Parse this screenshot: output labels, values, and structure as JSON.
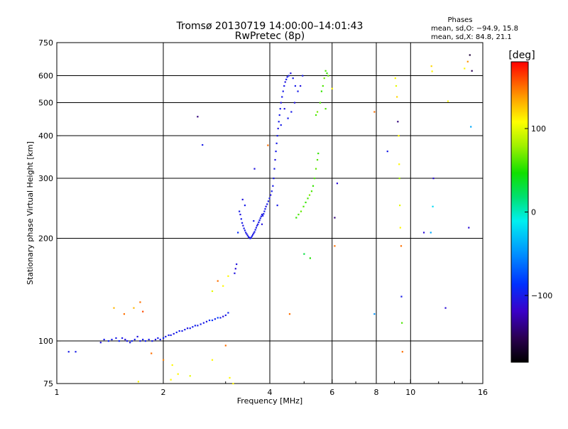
{
  "chart_data": {
    "type": "scatter",
    "title": "Tromsø 20130719 14:00:00–14:01:43",
    "subtitle": "RwPretec (8p)",
    "stats_header": "Phases",
    "stats_line1": "mean, sd,O: −94.9, 15.8",
    "stats_line2": "mean, sd,X:  84.8, 21.1",
    "xlabel": "Frequency [MHz]",
    "ylabel": "Stationary phase Virtual Height [km]",
    "x_scale": "log",
    "y_scale": "log",
    "xlim": [
      1,
      16
    ],
    "ylim": [
      75,
      750
    ],
    "x_ticks": [
      "1",
      "2",
      "4",
      "6",
      "8",
      "10",
      "16"
    ],
    "x_gridlines": [
      2,
      4,
      6,
      8,
      10
    ],
    "y_ticks": [
      "75",
      "100",
      "200",
      "300",
      "400",
      "500",
      "600",
      "750"
    ],
    "y_gridlines": [
      100,
      200,
      300,
      400,
      500,
      600
    ],
    "colorbar": {
      "label": "[deg]",
      "range": [
        -180,
        180
      ],
      "ticks": [
        "100",
        "0",
        "−100"
      ],
      "tick_values": [
        100,
        0,
        -100
      ]
    },
    "series": [
      {
        "points": [
          [
            1.08,
            93,
            -100
          ],
          [
            1.13,
            93,
            -100
          ],
          [
            1.33,
            99,
            -105
          ],
          [
            1.36,
            101,
            -100
          ],
          [
            1.4,
            100,
            -95
          ],
          [
            1.43,
            101,
            -100
          ],
          [
            1.47,
            102,
            -100
          ],
          [
            1.5,
            100,
            -95
          ],
          [
            1.53,
            102,
            -100
          ],
          [
            1.56,
            101,
            -110
          ],
          [
            1.58,
            100,
            -100
          ],
          [
            1.61,
            99,
            -100
          ],
          [
            1.63,
            100,
            -95
          ],
          [
            1.66,
            101,
            -100
          ],
          [
            1.69,
            103,
            -105
          ],
          [
            1.72,
            100,
            -100
          ],
          [
            1.75,
            101,
            -100
          ],
          [
            1.78,
            100,
            -95
          ],
          [
            1.82,
            101,
            -100
          ],
          [
            1.86,
            100,
            -100
          ],
          [
            1.9,
            101,
            -105
          ],
          [
            1.93,
            102,
            -100
          ],
          [
            1.96,
            101,
            -100
          ],
          [
            2.0,
            102,
            -95
          ],
          [
            2.03,
            103,
            -100
          ],
          [
            2.07,
            104,
            -100
          ],
          [
            2.1,
            104,
            -100
          ],
          [
            2.14,
            105,
            -105
          ],
          [
            2.18,
            106,
            -95
          ],
          [
            2.22,
            107,
            -100
          ],
          [
            2.26,
            107,
            -100
          ],
          [
            2.3,
            108,
            -100
          ],
          [
            2.34,
            109,
            -105
          ],
          [
            2.38,
            109,
            -100
          ],
          [
            2.42,
            110,
            -100
          ],
          [
            2.46,
            111,
            -95
          ],
          [
            2.5,
            111,
            -100
          ],
          [
            2.55,
            112,
            -100
          ],
          [
            2.6,
            113,
            -100
          ],
          [
            2.65,
            114,
            -105
          ],
          [
            2.7,
            115,
            -90
          ],
          [
            2.75,
            115,
            -85
          ],
          [
            2.8,
            116,
            -100
          ],
          [
            2.85,
            117,
            -80
          ],
          [
            2.9,
            117,
            -100
          ],
          [
            2.95,
            118,
            -110
          ],
          [
            3.0,
            119,
            -100
          ],
          [
            3.05,
            121,
            -95
          ],
          [
            3.18,
            158,
            -105
          ],
          [
            3.2,
            163,
            -110
          ],
          [
            3.22,
            168,
            -105
          ],
          [
            3.25,
            208,
            -90
          ],
          [
            3.28,
            240,
            -100
          ],
          [
            3.3,
            235,
            -105
          ],
          [
            3.32,
            228,
            -100
          ],
          [
            3.34,
            222,
            -100
          ],
          [
            3.36,
            218,
            -105
          ],
          [
            3.38,
            214,
            -100
          ],
          [
            3.4,
            211,
            -100
          ],
          [
            3.42,
            208,
            -100
          ],
          [
            3.44,
            206,
            -105
          ],
          [
            3.46,
            204,
            -100
          ],
          [
            3.48,
            202,
            -100
          ],
          [
            3.5,
            201,
            -105
          ],
          [
            3.52,
            200,
            -100
          ],
          [
            3.54,
            201,
            -100
          ],
          [
            3.56,
            203,
            -100
          ],
          [
            3.58,
            205,
            -100
          ],
          [
            3.6,
            207,
            -105
          ],
          [
            3.62,
            209,
            -100
          ],
          [
            3.64,
            212,
            -100
          ],
          [
            3.66,
            215,
            -100
          ],
          [
            3.68,
            218,
            -100
          ],
          [
            3.7,
            220,
            -105
          ],
          [
            3.72,
            223,
            -100
          ],
          [
            3.74,
            226,
            -100
          ],
          [
            3.76,
            229,
            -100
          ],
          [
            3.78,
            232,
            -100
          ],
          [
            3.8,
            235,
            -105
          ],
          [
            3.82,
            233,
            -100
          ],
          [
            3.84,
            236,
            -100
          ],
          [
            3.86,
            240,
            -100
          ],
          [
            3.88,
            244,
            -100
          ],
          [
            3.9,
            248,
            -105
          ],
          [
            3.93,
            252,
            -100
          ],
          [
            3.96,
            257,
            -100
          ],
          [
            3.99,
            262,
            -100
          ],
          [
            4.02,
            268,
            -105
          ],
          [
            4.05,
            275,
            -100
          ],
          [
            4.08,
            285,
            -100
          ],
          [
            4.1,
            300,
            -100
          ],
          [
            4.12,
            320,
            -100
          ],
          [
            4.14,
            340,
            -105
          ],
          [
            4.16,
            360,
            -100
          ],
          [
            4.18,
            380,
            -100
          ],
          [
            4.2,
            400,
            -100
          ],
          [
            4.22,
            420,
            -105
          ],
          [
            4.24,
            440,
            -100
          ],
          [
            4.26,
            460,
            -100
          ],
          [
            4.28,
            480,
            -100
          ],
          [
            4.3,
            500,
            -105
          ],
          [
            4.33,
            520,
            -100
          ],
          [
            4.36,
            540,
            -100
          ],
          [
            4.39,
            560,
            -100
          ],
          [
            4.42,
            575,
            -105
          ],
          [
            4.45,
            585,
            -100
          ],
          [
            4.48,
            595,
            -100
          ],
          [
            4.52,
            600,
            -100
          ],
          [
            4.58,
            610,
            -105
          ],
          [
            4.65,
            590,
            -100
          ],
          [
            4.72,
            560,
            -100
          ],
          [
            4.8,
            540,
            -100
          ],
          [
            4.88,
            560,
            -105
          ],
          [
            4.95,
            600,
            -100
          ],
          [
            3.35,
            260,
            -105
          ],
          [
            3.4,
            250,
            -100
          ],
          [
            3.6,
            225,
            -100
          ],
          [
            3.8,
            220,
            -105
          ],
          [
            4.2,
            250,
            -100
          ],
          [
            4.4,
            480,
            -105
          ],
          [
            4.5,
            450,
            -100
          ],
          [
            4.6,
            470,
            -100
          ],
          [
            4.3,
            430,
            -100
          ],
          [
            4.7,
            500,
            -105
          ],
          [
            3.62,
            320,
            -105
          ],
          [
            2.5,
            455,
            -140
          ],
          [
            2.58,
            376,
            -100
          ],
          [
            3.95,
            375,
            150
          ],
          [
            4.75,
            230,
            55
          ],
          [
            4.82,
            235,
            60
          ],
          [
            4.9,
            240,
            65
          ],
          [
            4.98,
            248,
            60
          ],
          [
            5.05,
            255,
            55
          ],
          [
            5.12,
            262,
            60
          ],
          [
            5.18,
            268,
            70
          ],
          [
            5.25,
            275,
            60
          ],
          [
            5.3,
            285,
            55
          ],
          [
            5.35,
            300,
            60
          ],
          [
            5.4,
            320,
            65
          ],
          [
            5.45,
            340,
            60
          ],
          [
            5.48,
            355,
            55
          ],
          [
            5.4,
            460,
            60
          ],
          [
            5.45,
            470,
            70
          ],
          [
            5.55,
            500,
            60
          ],
          [
            5.6,
            540,
            55
          ],
          [
            5.65,
            560,
            60
          ],
          [
            5.7,
            590,
            70
          ],
          [
            5.75,
            620,
            60
          ],
          [
            5.8,
            610,
            55
          ],
          [
            5.85,
            600,
            65
          ],
          [
            4.55,
            120,
            150
          ],
          [
            3.0,
            97,
            150
          ],
          [
            2.85,
            150,
            150
          ],
          [
            2.75,
            140,
            100
          ],
          [
            2.95,
            145,
            110
          ],
          [
            3.05,
            155,
            110
          ],
          [
            1.45,
            125,
            130
          ],
          [
            1.55,
            120,
            150
          ],
          [
            1.65,
            125,
            130
          ],
          [
            1.72,
            130,
            150
          ],
          [
            1.75,
            122,
            160
          ],
          [
            1.85,
            92,
            150
          ],
          [
            2.0,
            88,
            145
          ],
          [
            2.12,
            85,
            110
          ],
          [
            2.2,
            80,
            110
          ],
          [
            2.38,
            79,
            100
          ],
          [
            2.75,
            88,
            110
          ],
          [
            3.08,
            78,
            110
          ],
          [
            3.15,
            75,
            110
          ],
          [
            1.7,
            76,
            110
          ],
          [
            1.62,
            70,
            110
          ],
          [
            2.1,
            77,
            110
          ],
          [
            5.0,
            180,
            30
          ],
          [
            5.2,
            175,
            50
          ],
          [
            5.75,
            480,
            60
          ],
          [
            6.1,
            230,
            -140
          ],
          [
            6.2,
            290,
            -110
          ],
          [
            6.1,
            190,
            150
          ],
          [
            6.0,
            550,
            110
          ],
          [
            7.9,
            470,
            150
          ],
          [
            7.9,
            120,
            -50
          ],
          [
            8.6,
            360,
            -100
          ],
          [
            9.05,
            590,
            110
          ],
          [
            9.1,
            560,
            100
          ],
          [
            9.15,
            520,
            120
          ],
          [
            9.2,
            440,
            -140
          ],
          [
            9.25,
            400,
            110
          ],
          [
            9.28,
            330,
            110
          ],
          [
            9.3,
            300,
            80
          ],
          [
            9.32,
            250,
            100
          ],
          [
            9.35,
            215,
            110
          ],
          [
            9.4,
            190,
            150
          ],
          [
            9.42,
            135,
            -100
          ],
          [
            9.45,
            113,
            60
          ],
          [
            9.48,
            93,
            150
          ],
          [
            10.9,
            208,
            -110
          ],
          [
            11.4,
            208,
            -40
          ],
          [
            11.55,
            248,
            -20
          ],
          [
            11.6,
            300,
            -110
          ],
          [
            11.45,
            640,
            120
          ],
          [
            11.5,
            618,
            110
          ],
          [
            12.55,
            125,
            -110
          ],
          [
            12.75,
            505,
            110
          ],
          [
            14.2,
            630,
            110
          ],
          [
            14.5,
            660,
            140
          ],
          [
            14.7,
            690,
            -160
          ],
          [
            14.8,
            425,
            -40
          ],
          [
            14.6,
            215,
            -110
          ],
          [
            14.9,
            620,
            -150
          ]
        ]
      }
    ]
  }
}
